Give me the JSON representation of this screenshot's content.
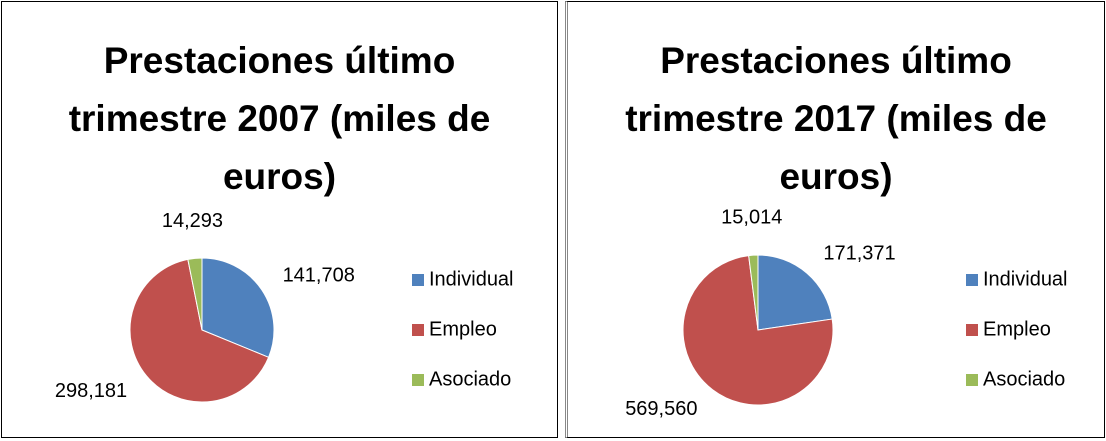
{
  "chart_data": [
    {
      "type": "pie",
      "title": "Prestaciones último trimestre 2007 (miles de euros)",
      "categories": [
        "Individual",
        "Empleo",
        "Asociado"
      ],
      "values": [
        141708,
        298181,
        14293
      ],
      "value_labels": [
        "141,708",
        "298,181",
        "14,293"
      ],
      "colors": [
        "#4f81bd",
        "#c0504d",
        "#9bbb59"
      ],
      "legend": "right"
    },
    {
      "type": "pie",
      "title": "Prestaciones último trimestre 2017 (miles de euros)",
      "categories": [
        "Individual",
        "Empleo",
        "Asociado"
      ],
      "values": [
        171371,
        569560,
        15014
      ],
      "value_labels": [
        "171,371",
        "569,560",
        "15,014"
      ],
      "colors": [
        "#4f81bd",
        "#c0504d",
        "#9bbb59"
      ],
      "legend": "right"
    }
  ]
}
